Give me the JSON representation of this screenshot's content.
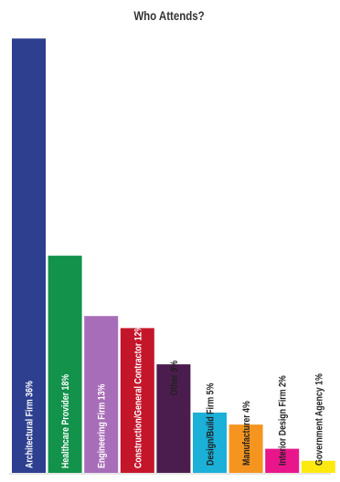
{
  "chart_data": {
    "type": "bar",
    "title": "Who Attends?",
    "xlabel": "",
    "ylabel": "",
    "ylim": [
      0,
      37
    ],
    "grid": false,
    "legend": "none",
    "categories": [
      "Architectural Firm",
      "Healthcare Provider",
      "Engineering Firm",
      "Construction/General Contractor",
      "Other",
      "Design/Build Firm",
      "Manufacturer",
      "Interior Design Firm",
      "Government Agency"
    ],
    "values": [
      36,
      18,
      13,
      12,
      9,
      5,
      4,
      2,
      1
    ],
    "labels": [
      "Architectural Firm 36%",
      "Healthcare Provider 18%",
      "Engineering Firm 13%",
      "Construction/General Contractor 12%",
      "Other 9%",
      "Design/Build Firm 5%",
      "Manufacturer 4%",
      "Interior Design Firm 2%",
      "Government Agency 1%"
    ],
    "colors": [
      "#2e3f8f",
      "#12924a",
      "#a86db8",
      "#c4162b",
      "#4b1d4e",
      "#1ab0d8",
      "#f5951f",
      "#e8168a",
      "#fde90f"
    ],
    "label_colors": [
      "#ffffff",
      "#ffffff",
      "#ffffff",
      "#ffffff",
      "#222222",
      "#222222",
      "#222222",
      "#222222",
      "#222222"
    ],
    "label_position": [
      "inside",
      "inside",
      "inside",
      "inside",
      "above",
      "above",
      "above",
      "above",
      "above"
    ]
  }
}
